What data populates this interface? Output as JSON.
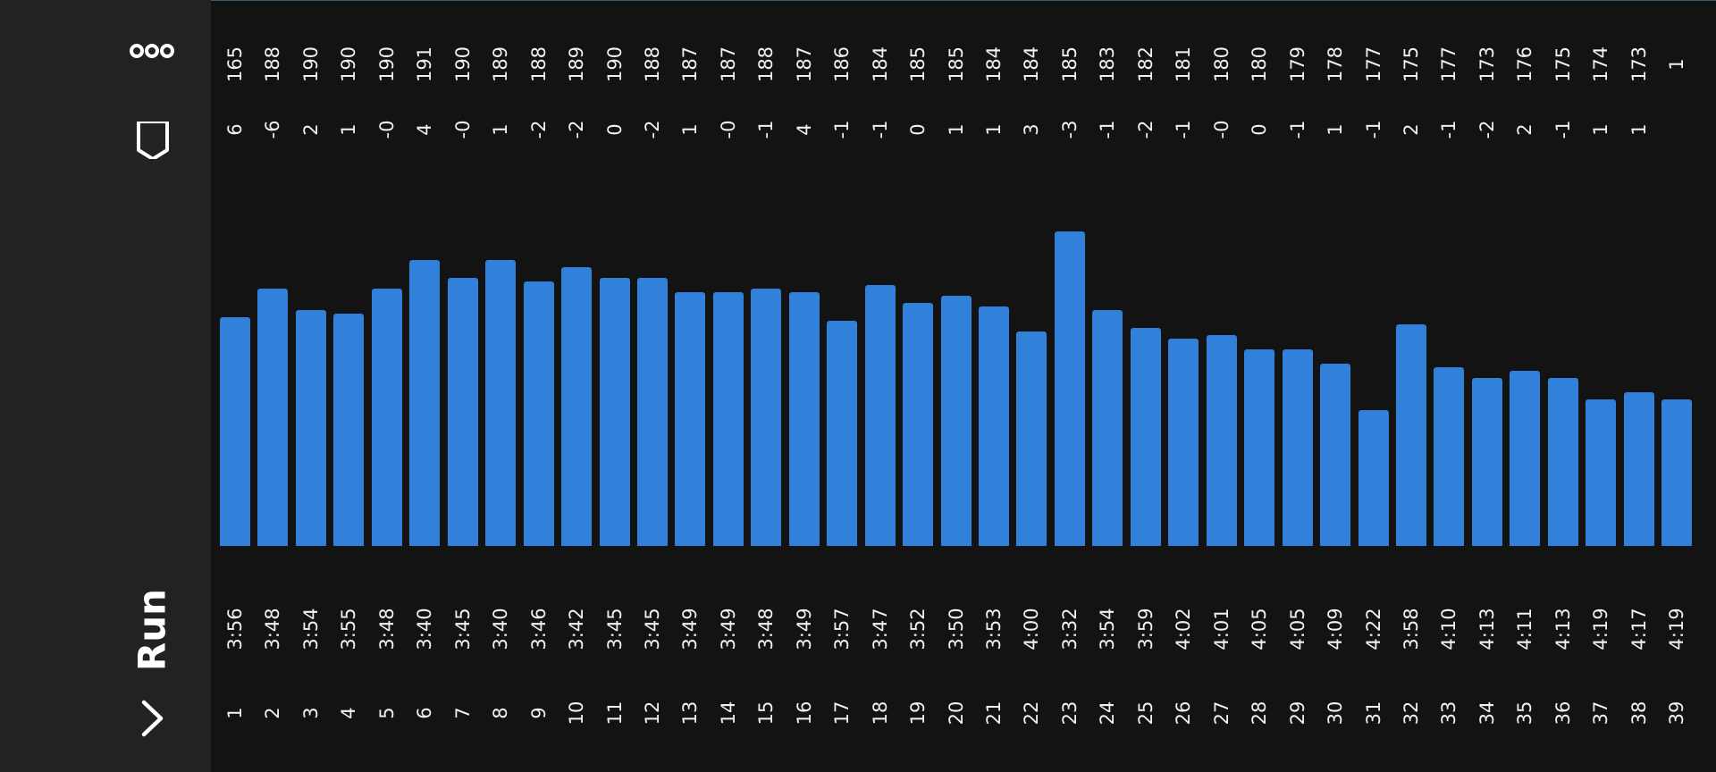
{
  "header": {
    "title": "Run",
    "more_icon": "more-icon",
    "flag_icon": "flag-icon",
    "back_icon": "chevron-right-icon"
  },
  "colors": {
    "background": "#131313",
    "sidebar": "#222222",
    "bar": "#3180d9",
    "text": "#f0f0f0"
  },
  "laps": [
    {
      "lap": "1",
      "pace": "3:56",
      "diff": "6",
      "cadence": "165",
      "value": 236
    },
    {
      "lap": "2",
      "pace": "3:48",
      "diff": "-6",
      "cadence": "188",
      "value": 228
    },
    {
      "lap": "3",
      "pace": "3:54",
      "diff": "2",
      "cadence": "190",
      "value": 234
    },
    {
      "lap": "4",
      "pace": "3:55",
      "diff": "1",
      "cadence": "190",
      "value": 235
    },
    {
      "lap": "5",
      "pace": "3:48",
      "diff": "-0",
      "cadence": "190",
      "value": 228
    },
    {
      "lap": "6",
      "pace": "3:40",
      "diff": "4",
      "cadence": "191",
      "value": 220
    },
    {
      "lap": "7",
      "pace": "3:45",
      "diff": "-0",
      "cadence": "190",
      "value": 225
    },
    {
      "lap": "8",
      "pace": "3:40",
      "diff": "1",
      "cadence": "189",
      "value": 220
    },
    {
      "lap": "9",
      "pace": "3:46",
      "diff": "-2",
      "cadence": "188",
      "value": 226
    },
    {
      "lap": "10",
      "pace": "3:42",
      "diff": "-2",
      "cadence": "189",
      "value": 222
    },
    {
      "lap": "11",
      "pace": "3:45",
      "diff": "0",
      "cadence": "190",
      "value": 225
    },
    {
      "lap": "12",
      "pace": "3:45",
      "diff": "-2",
      "cadence": "188",
      "value": 225
    },
    {
      "lap": "13",
      "pace": "3:49",
      "diff": "1",
      "cadence": "187",
      "value": 229
    },
    {
      "lap": "14",
      "pace": "3:49",
      "diff": "-0",
      "cadence": "187",
      "value": 229
    },
    {
      "lap": "15",
      "pace": "3:48",
      "diff": "-1",
      "cadence": "188",
      "value": 228
    },
    {
      "lap": "16",
      "pace": "3:49",
      "diff": "4",
      "cadence": "187",
      "value": 229
    },
    {
      "lap": "17",
      "pace": "3:57",
      "diff": "-1",
      "cadence": "186",
      "value": 237
    },
    {
      "lap": "18",
      "pace": "3:47",
      "diff": "-1",
      "cadence": "184",
      "value": 227
    },
    {
      "lap": "19",
      "pace": "3:52",
      "diff": "0",
      "cadence": "185",
      "value": 232
    },
    {
      "lap": "20",
      "pace": "3:50",
      "diff": "1",
      "cadence": "185",
      "value": 230
    },
    {
      "lap": "21",
      "pace": "3:53",
      "diff": "1",
      "cadence": "184",
      "value": 233
    },
    {
      "lap": "22",
      "pace": "4:00",
      "diff": "3",
      "cadence": "184",
      "value": 240
    },
    {
      "lap": "23",
      "pace": "3:32",
      "diff": "-3",
      "cadence": "185",
      "value": 212
    },
    {
      "lap": "24",
      "pace": "3:54",
      "diff": "-1",
      "cadence": "183",
      "value": 234
    },
    {
      "lap": "25",
      "pace": "3:59",
      "diff": "-2",
      "cadence": "182",
      "value": 239
    },
    {
      "lap": "26",
      "pace": "4:02",
      "diff": "-1",
      "cadence": "181",
      "value": 242
    },
    {
      "lap": "27",
      "pace": "4:01",
      "diff": "-0",
      "cadence": "180",
      "value": 241
    },
    {
      "lap": "28",
      "pace": "4:05",
      "diff": "0",
      "cadence": "180",
      "value": 245
    },
    {
      "lap": "29",
      "pace": "4:05",
      "diff": "-1",
      "cadence": "179",
      "value": 245
    },
    {
      "lap": "30",
      "pace": "4:09",
      "diff": "1",
      "cadence": "178",
      "value": 249
    },
    {
      "lap": "31",
      "pace": "4:22",
      "diff": "-1",
      "cadence": "177",
      "value": 262
    },
    {
      "lap": "32",
      "pace": "3:58",
      "diff": "2",
      "cadence": "175",
      "value": 238
    },
    {
      "lap": "33",
      "pace": "4:10",
      "diff": "-1",
      "cadence": "177",
      "value": 250
    },
    {
      "lap": "34",
      "pace": "4:13",
      "diff": "-2",
      "cadence": "173",
      "value": 253
    },
    {
      "lap": "35",
      "pace": "4:11",
      "diff": "2",
      "cadence": "176",
      "value": 251
    },
    {
      "lap": "36",
      "pace": "4:13",
      "diff": "-1",
      "cadence": "175",
      "value": 253
    },
    {
      "lap": "37",
      "pace": "4:19",
      "diff": "1",
      "cadence": "174",
      "value": 259
    },
    {
      "lap": "38",
      "pace": "4:17",
      "diff": "1",
      "cadence": "173",
      "value": 257
    },
    {
      "lap": "39",
      "pace": "4:19",
      "diff": "",
      "cadence": "1",
      "value": 259
    }
  ],
  "chart_data": {
    "type": "bar",
    "categories": [
      "1",
      "2",
      "3",
      "4",
      "5",
      "6",
      "7",
      "8",
      "9",
      "10",
      "11",
      "12",
      "13",
      "14",
      "15",
      "16",
      "17",
      "18",
      "19",
      "20",
      "21",
      "22",
      "23",
      "24",
      "25",
      "26",
      "27",
      "28",
      "29",
      "30",
      "31",
      "32",
      "33",
      "34",
      "35",
      "36",
      "37",
      "38",
      "39"
    ],
    "values": [
      236,
      228,
      234,
      235,
      228,
      220,
      225,
      220,
      226,
      222,
      225,
      225,
      229,
      229,
      228,
      229,
      237,
      227,
      232,
      230,
      233,
      240,
      212,
      234,
      239,
      242,
      241,
      245,
      245,
      249,
      262,
      238,
      250,
      253,
      251,
      253,
      259,
      257,
      259
    ],
    "value_unit": "pace seconds per km (taller bar = faster)",
    "title": "",
    "xlabel": "",
    "ylabel": "",
    "ylim": [
      180,
      300
    ],
    "grid": false,
    "legend": "none"
  }
}
